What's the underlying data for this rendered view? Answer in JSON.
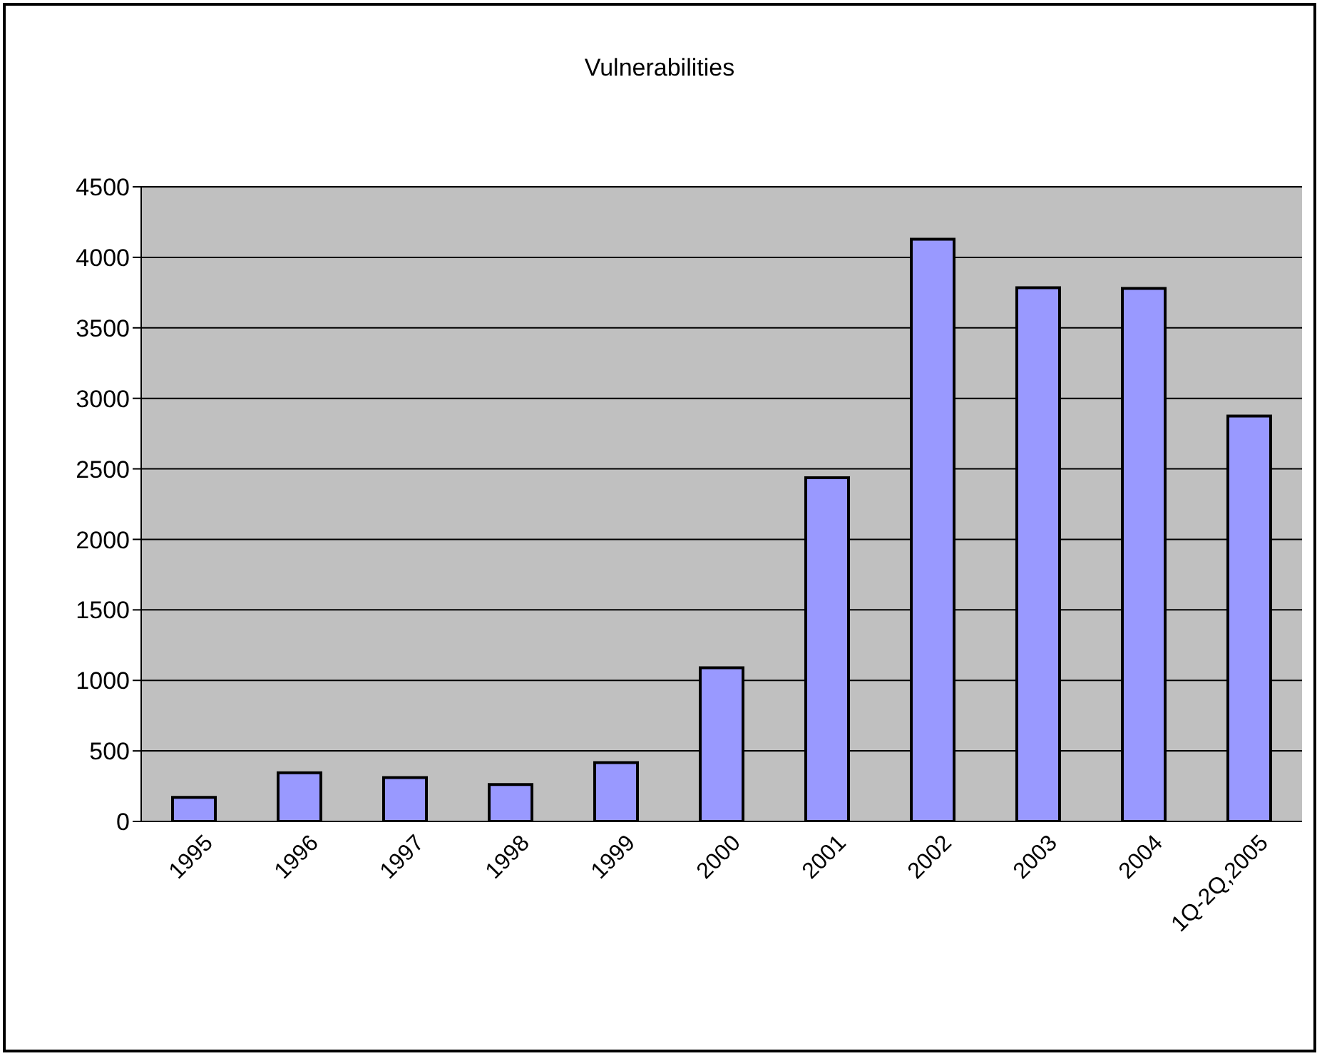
{
  "chart_data": {
    "type": "bar",
    "title": "Vulnerabilities",
    "categories": [
      "1995",
      "1996",
      "1997",
      "1998",
      "1999",
      "2000",
      "2001",
      "2002",
      "2003",
      "2004",
      "1Q-2Q,2005"
    ],
    "values": [
      171,
      345,
      311,
      262,
      417,
      1090,
      2437,
      4129,
      3784,
      3780,
      2874
    ],
    "color": "#9999ff",
    "ylim": [
      0,
      4500
    ],
    "yticks": [
      0,
      500,
      1000,
      1500,
      2000,
      2500,
      3000,
      3500,
      4000,
      4500
    ],
    "grid": "y",
    "legend": false
  }
}
